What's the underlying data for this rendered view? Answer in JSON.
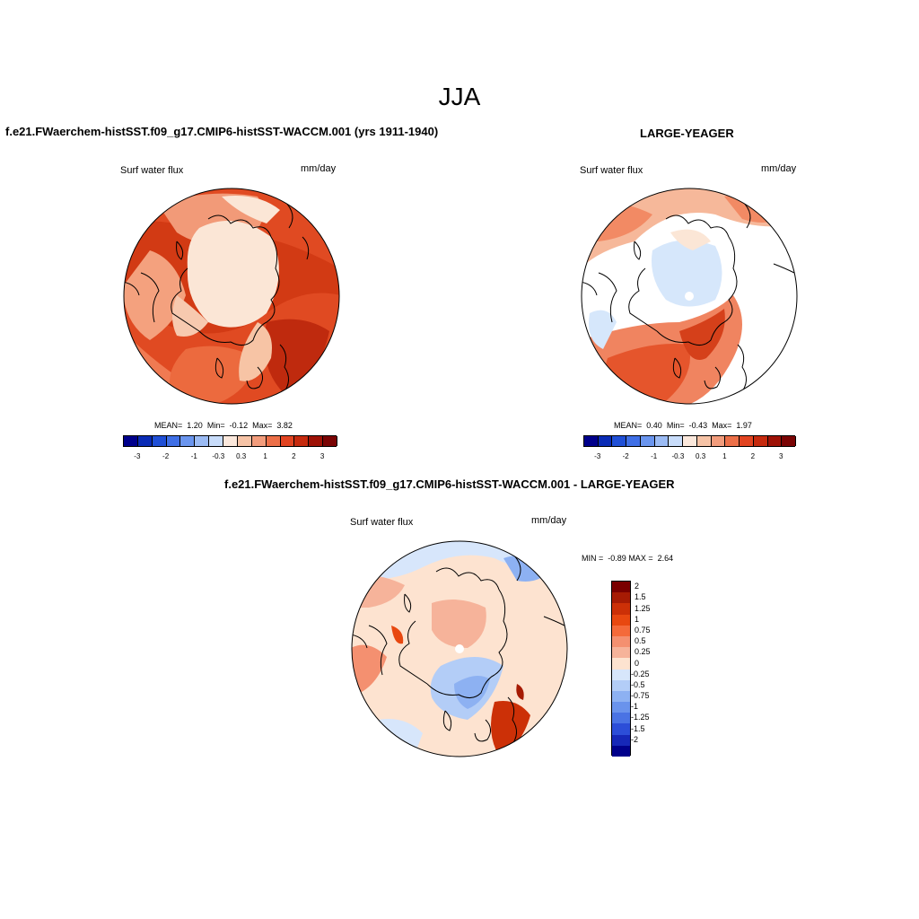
{
  "season": "JJA",
  "panels": [
    {
      "title": "f.e21.FWaerchem-histSST.f09_g17.CMIP6-histSST-WACCM.001 (yrs 1911-1940)",
      "left_label": "Surf water flux",
      "right_label": "mm/day",
      "stats": {
        "mean_label": "MEAN=",
        "mean": "1.20",
        "min_label": "Min=",
        "min": "-0.12",
        "max_label": "Max=",
        "max": "3.82"
      }
    },
    {
      "title": "LARGE-YEAGER",
      "left_label": "Surf water flux",
      "right_label": "mm/day",
      "stats": {
        "mean_label": "MEAN=",
        "mean": "0.40",
        "min_label": "Min=",
        "min": "-0.43",
        "max_label": "Max=",
        "max": "1.97"
      }
    },
    {
      "title": "f.e21.FWaerchem-histSST.f09_g17.CMIP6-histSST-WACCM.001 - LARGE-YEAGER",
      "left_label": "Surf water flux",
      "right_label": "mm/day",
      "stats": {
        "min_label": "MIN =",
        "min": "-0.89",
        "max_label": "MAX =",
        "max": "2.64"
      }
    }
  ],
  "colorbar_hz": {
    "colors": [
      "#00008b",
      "#0a2bb5",
      "#1f4fd6",
      "#3f6fe6",
      "#6a95ee",
      "#9bbbf4",
      "#c8dcfa",
      "#fbe8dc",
      "#f6c3a6",
      "#f29c7c",
      "#ec6f48",
      "#e24421",
      "#c62a0e",
      "#9e1206",
      "#7a0404"
    ],
    "tick_labels": [
      "-3",
      "-2",
      "-1",
      "-0.3",
      "0.3",
      "1",
      "2",
      "3"
    ]
  },
  "colorbar_vt": {
    "colors": [
      "#7a0000",
      "#a61b04",
      "#cc3007",
      "#e84810",
      "#f46a3a",
      "#f49070",
      "#f6b39a",
      "#fde3d0",
      "#d7e6fb",
      "#b3cdf7",
      "#8db1f2",
      "#6a93ec",
      "#4a73e4",
      "#2c4ed8",
      "#1628b8",
      "#00008b"
    ],
    "tick_labels": [
      "2",
      "1.5",
      "1.25",
      "1",
      "0.75",
      "0.5",
      "0.25",
      "0",
      "-0.25",
      "-0.5",
      "-0.75",
      "-1",
      "-1.25",
      "-1.5",
      "-2"
    ]
  }
}
